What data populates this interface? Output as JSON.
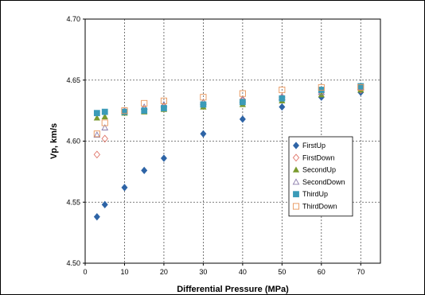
{
  "chart_data": {
    "type": "scatter",
    "title": "",
    "xlabel": "Differential Pressure (MPa)",
    "ylabel": "Vp, km/s",
    "xlim": [
      0,
      75
    ],
    "ylim": [
      4.5,
      4.7
    ],
    "x_ticks": [
      "0",
      "10",
      "20",
      "30",
      "40",
      "50",
      "60",
      "70"
    ],
    "y_ticks": [
      "4.50",
      "4.55",
      "4.60",
      "4.65",
      "4.70"
    ],
    "grid": true,
    "legend_position": "right",
    "series": [
      {
        "name": "FirstUp",
        "marker": "diamond-filled",
        "color": "#2e64a6",
        "points": [
          [
            3,
            4.538
          ],
          [
            5,
            4.548
          ],
          [
            10,
            4.562
          ],
          [
            15,
            4.576
          ],
          [
            20,
            4.586
          ],
          [
            30,
            4.606
          ],
          [
            40,
            4.618
          ],
          [
            50,
            4.628
          ],
          [
            60,
            4.636
          ],
          [
            70,
            4.64
          ]
        ]
      },
      {
        "name": "FirstDown",
        "marker": "diamond-open",
        "color": "#e0776b",
        "points": [
          [
            3,
            4.589
          ],
          [
            5,
            4.602
          ],
          [
            10,
            4.624
          ],
          [
            15,
            4.626
          ],
          [
            20,
            4.628
          ],
          [
            30,
            4.631
          ],
          [
            40,
            4.634
          ],
          [
            50,
            4.636
          ],
          [
            60,
            4.64
          ],
          [
            70,
            4.642
          ]
        ]
      },
      {
        "name": "SecondUp",
        "marker": "triangle-filled",
        "color": "#7a9a2e",
        "points": [
          [
            3,
            4.619
          ],
          [
            5,
            4.62
          ],
          [
            10,
            4.623
          ],
          [
            15,
            4.624
          ],
          [
            20,
            4.626
          ],
          [
            30,
            4.628
          ],
          [
            40,
            4.63
          ],
          [
            50,
            4.633
          ],
          [
            60,
            4.638
          ],
          [
            70,
            4.642
          ]
        ]
      },
      {
        "name": "SecondDown",
        "marker": "triangle-open",
        "color": "#8a7bab",
        "points": [
          [
            3,
            4.605
          ],
          [
            5,
            4.611
          ],
          [
            10,
            4.625
          ],
          [
            15,
            4.628
          ],
          [
            20,
            4.63
          ],
          [
            30,
            4.632
          ],
          [
            40,
            4.634
          ],
          [
            50,
            4.636
          ],
          [
            60,
            4.64
          ],
          [
            70,
            4.644
          ]
        ]
      },
      {
        "name": "ThirdUp",
        "marker": "square-filled",
        "color": "#3b9bb8",
        "points": [
          [
            3,
            4.623
          ],
          [
            5,
            4.624
          ],
          [
            10,
            4.624
          ],
          [
            15,
            4.625
          ],
          [
            20,
            4.627
          ],
          [
            30,
            4.63
          ],
          [
            40,
            4.632
          ],
          [
            50,
            4.635
          ],
          [
            60,
            4.642
          ],
          [
            70,
            4.645
          ]
        ]
      },
      {
        "name": "ThirdDown",
        "marker": "square-open",
        "color": "#e8955a",
        "points": [
          [
            3,
            4.606
          ],
          [
            5,
            4.615
          ],
          [
            10,
            4.625
          ],
          [
            15,
            4.631
          ],
          [
            20,
            4.633
          ],
          [
            30,
            4.636
          ],
          [
            40,
            4.639
          ],
          [
            50,
            4.642
          ],
          [
            60,
            4.644
          ],
          [
            70,
            4.644
          ]
        ]
      }
    ]
  }
}
